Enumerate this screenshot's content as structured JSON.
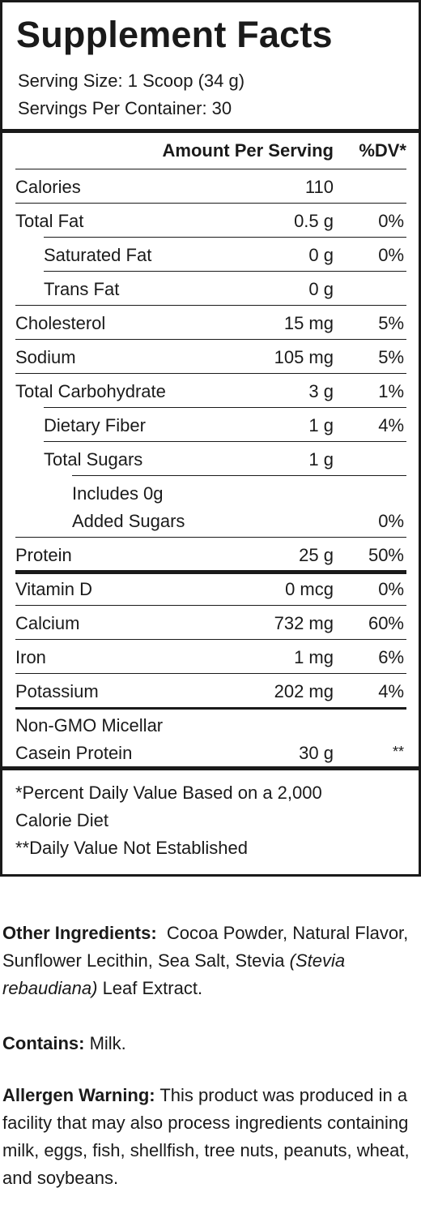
{
  "title": "Supplement Facts",
  "serving_size": "Serving Size: 1 Scoop (34 g)",
  "servings_per_container": "Servings Per Container: 30",
  "header": {
    "amount": "Amount Per Serving",
    "dv": "%DV*"
  },
  "rows": [
    {
      "name": "Calories",
      "amount": "110",
      "dv": ""
    },
    {
      "name": "Total Fat",
      "amount": "0.5 g",
      "dv": "0%"
    },
    {
      "name": "Saturated Fat",
      "amount": "0 g",
      "dv": "0%"
    },
    {
      "name": "Trans Fat",
      "amount": "0 g",
      "dv": ""
    },
    {
      "name": "Cholesterol",
      "amount": "15 mg",
      "dv": "5%"
    },
    {
      "name": "Sodium",
      "amount": "105 mg",
      "dv": "5%"
    },
    {
      "name": "Total Carbohydrate",
      "amount": "3 g",
      "dv": "1%"
    },
    {
      "name": "Dietary Fiber",
      "amount": "1 g",
      "dv": "4%"
    },
    {
      "name": "Total Sugars",
      "amount": "1 g",
      "dv": ""
    },
    {
      "name_line1": "Includes 0g",
      "name_line2": "Added Sugars",
      "amount": "",
      "dv": "0%"
    },
    {
      "name": "Protein",
      "amount": "25 g",
      "dv": "50%"
    },
    {
      "name": "Vitamin D",
      "amount": "0 mcg",
      "dv": "0%"
    },
    {
      "name": "Calcium",
      "amount": "732 mg",
      "dv": "60%"
    },
    {
      "name": "Iron",
      "amount": "1 mg",
      "dv": "6%"
    },
    {
      "name": "Potassium",
      "amount": "202 mg",
      "dv": "4%"
    },
    {
      "name_line1": "Non-GMO Micellar",
      "name_line2": "Casein Protein",
      "amount": "30 g",
      "dv": "**"
    }
  ],
  "footnotes": {
    "line1": "*Percent Daily Value Based on a 2,000",
    "line2": "Calorie Diet",
    "line3": "**Daily Value Not Established"
  },
  "other_ingredients": {
    "label": "Other Ingredients:",
    "text_before": "Cocoa Powder, Natural Flavor, Sunflower Lecithin, Sea Salt, Stevia",
    "italic": "(Stevia rebaudiana)",
    "text_after": "Leaf Extract."
  },
  "contains": {
    "label": "Contains:",
    "text": "Milk."
  },
  "allergen_warning": {
    "label": "Allergen Warning:",
    "text": "This product was produced in a facility that may also process ingredients containing milk, eggs, fish, shellfish, tree nuts, peanuts, wheat, and soybeans."
  }
}
